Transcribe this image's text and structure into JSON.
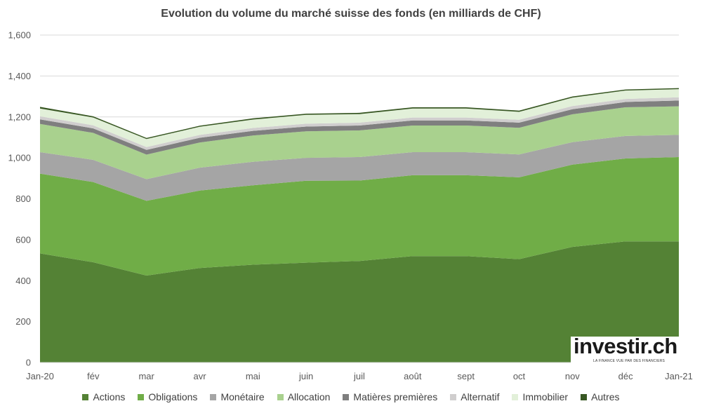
{
  "chart_data": {
    "type": "area",
    "stacked": true,
    "title": "Evolution du volume du marché suisse des fonds (en milliards de CHF)",
    "categories": [
      "Jan-20",
      "fév",
      "mar",
      "avr",
      "mai",
      "juin",
      "juil",
      "août",
      "sept",
      "oct",
      "nov",
      "déc",
      "Jan-21"
    ],
    "ylim": [
      0,
      1600
    ],
    "yticks": [
      "0",
      "200",
      "400",
      "600",
      "800",
      "1,000",
      "1,200",
      "1,400",
      "1,600"
    ],
    "grid": true,
    "legend_position": "bottom",
    "series": [
      {
        "name": "Actions",
        "color": "#548235",
        "values": [
          533,
          490,
          425,
          462,
          478,
          488,
          496,
          520,
          520,
          505,
          565,
          592,
          592
        ]
      },
      {
        "name": "Obligations",
        "color": "#70ad47",
        "values": [
          390,
          392,
          365,
          378,
          388,
          400,
          393,
          395,
          395,
          400,
          402,
          405,
          412
        ]
      },
      {
        "name": "Monétaire",
        "color": "#a5a5a5",
        "values": [
          105,
          108,
          106,
          112,
          115,
          112,
          115,
          113,
          113,
          112,
          110,
          110,
          108
        ]
      },
      {
        "name": "Allocation",
        "color": "#a9d18e",
        "values": [
          138,
          132,
          120,
          123,
          128,
          130,
          130,
          130,
          130,
          130,
          136,
          140,
          140
        ]
      },
      {
        "name": "Matières premières",
        "color": "#7f7f7f",
        "values": [
          22,
          22,
          23,
          23,
          23,
          23,
          24,
          25,
          25,
          25,
          25,
          26,
          28
        ]
      },
      {
        "name": "Alternatif",
        "color": "#d0cece",
        "values": [
          15,
          15,
          14,
          14,
          14,
          14,
          14,
          14,
          14,
          14,
          15,
          15,
          16
        ]
      },
      {
        "name": "Immobilier",
        "color": "#e2f0d9",
        "values": [
          38,
          38,
          39,
          40,
          41,
          43,
          42,
          44,
          44,
          39,
          41,
          41,
          40
        ]
      },
      {
        "name": "Autres",
        "color": "#385723",
        "values": [
          8,
          6,
          5,
          5,
          6,
          6,
          6,
          6,
          6,
          6,
          6,
          5,
          5
        ]
      }
    ]
  },
  "logo": {
    "text": "investir.ch",
    "tagline": "LA FINANCE VUE PAR DES FINANCIERS"
  }
}
